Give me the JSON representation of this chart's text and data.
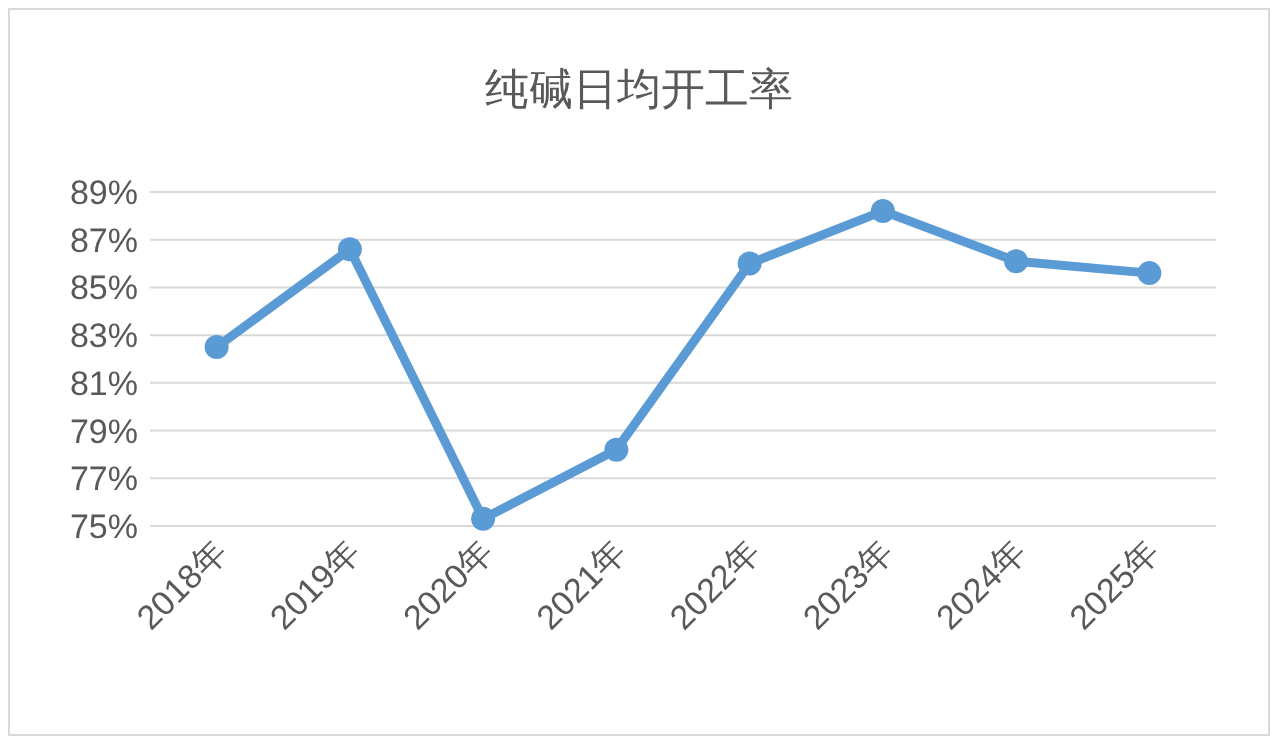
{
  "chart_data": {
    "type": "line",
    "title": "纯碱日均开工率",
    "categories": [
      "2018年",
      "2019年",
      "2020年",
      "2021年",
      "2022年",
      "2023年",
      "2024年",
      "2025年"
    ],
    "values": [
      82.5,
      86.6,
      75.3,
      78.2,
      86.0,
      88.2,
      86.1,
      85.6
    ],
    "color": "#5b9bd5",
    "ylim": [
      75,
      89
    ],
    "yticks": [
      {
        "value": 75,
        "label": "75%"
      },
      {
        "value": 77,
        "label": "77%"
      },
      {
        "value": 79,
        "label": "79%"
      },
      {
        "value": 81,
        "label": "81%"
      },
      {
        "value": 83,
        "label": "83%"
      },
      {
        "value": 85,
        "label": "85%"
      },
      {
        "value": 87,
        "label": "87%"
      },
      {
        "value": 89,
        "label": "89%"
      }
    ],
    "grid": "y",
    "marker": "circle"
  }
}
